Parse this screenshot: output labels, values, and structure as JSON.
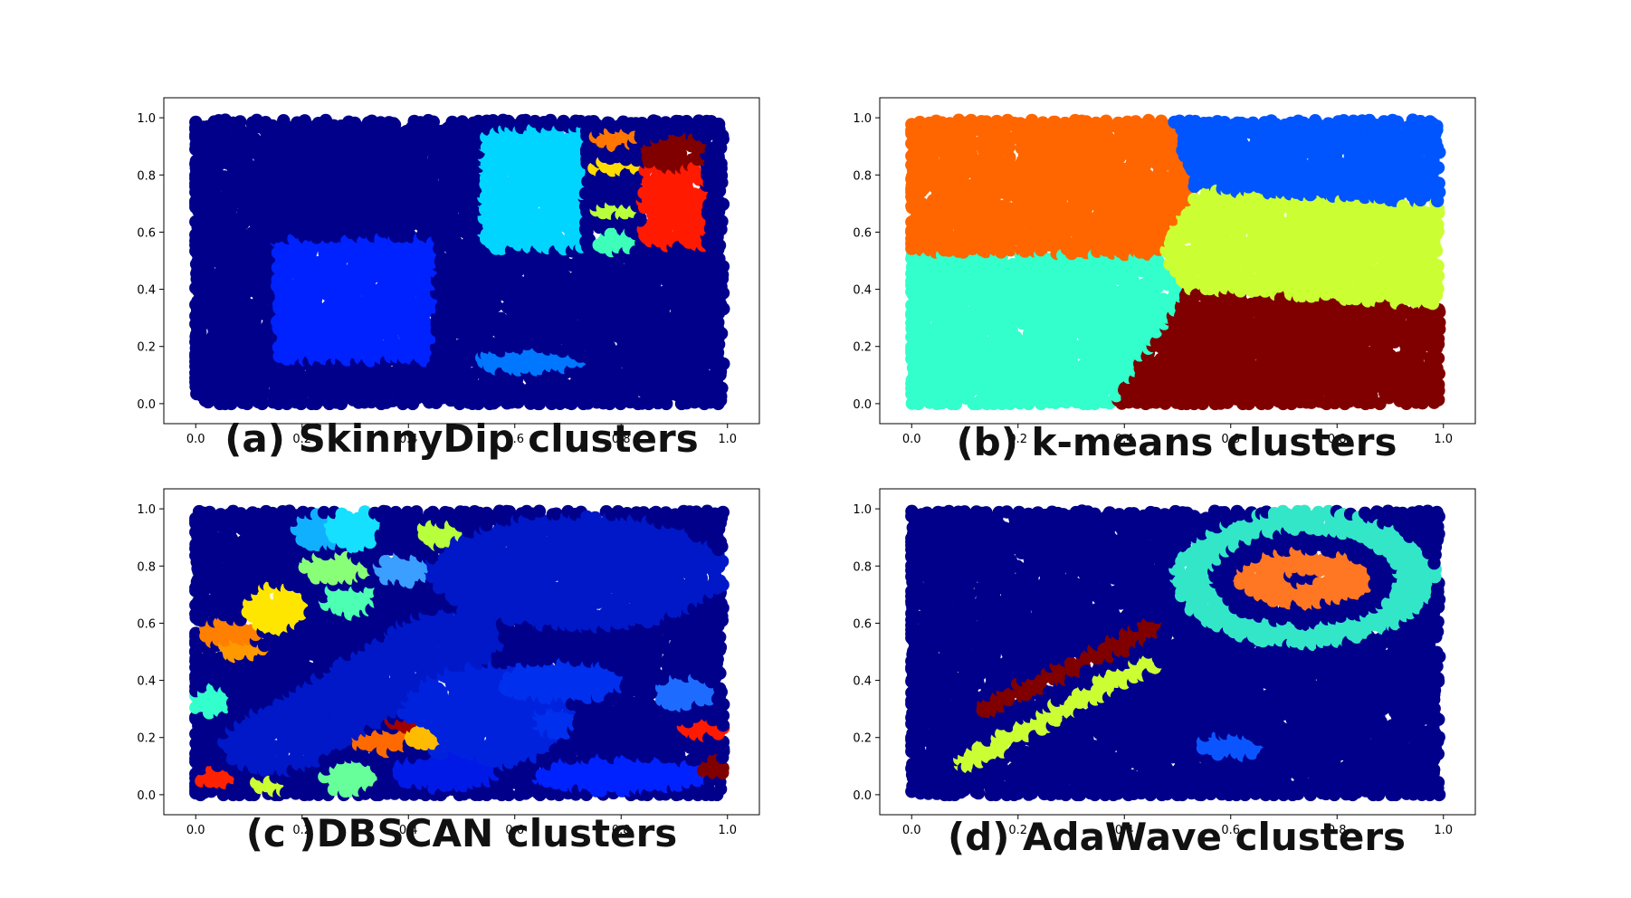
{
  "chart_data": [
    {
      "type": "scatter",
      "title": "(a) SkinnyDip clusters",
      "xlim": [
        -0.06,
        1.06
      ],
      "ylim": [
        -0.07,
        1.07
      ],
      "x_ticks": [
        "0.0",
        "0.2",
        "0.4",
        "0.6",
        "0.8",
        "1.0"
      ],
      "y_ticks": [
        "0.0",
        "0.2",
        "0.4",
        "0.6",
        "0.8",
        "1.0"
      ],
      "grid": false,
      "background_cluster": {
        "color": "#00008b",
        "region": [
          0,
          1,
          0,
          1
        ]
      },
      "clusters": [
        {
          "shape": "rect",
          "x": [
            0.15,
            0.45
          ],
          "y": [
            0.15,
            0.58
          ],
          "color": "#0022ff"
        },
        {
          "shape": "rect",
          "x": [
            0.54,
            0.73
          ],
          "y": [
            0.54,
            0.96
          ],
          "color": "#00d5ff"
        },
        {
          "shape": "rect",
          "x": [
            0.84,
            0.96
          ],
          "y": [
            0.55,
            0.83
          ],
          "color": "#ff1a00"
        },
        {
          "shape": "blob",
          "cx": 0.9,
          "cy": 0.88,
          "rx": 0.06,
          "ry": 0.06,
          "color": "#800000"
        },
        {
          "shape": "blob",
          "cx": 0.79,
          "cy": 0.93,
          "rx": 0.04,
          "ry": 0.03,
          "color": "#ff7700"
        },
        {
          "shape": "blob",
          "cx": 0.79,
          "cy": 0.83,
          "rx": 0.045,
          "ry": 0.02,
          "color": "#ffdd00"
        },
        {
          "shape": "blob",
          "cx": 0.79,
          "cy": 0.68,
          "rx": 0.045,
          "ry": 0.02,
          "color": "#b9ff3c"
        },
        {
          "shape": "blob",
          "cx": 0.79,
          "cy": 0.57,
          "rx": 0.04,
          "ry": 0.04,
          "color": "#3dffb9"
        },
        {
          "shape": "blob",
          "cx": 0.63,
          "cy": 0.15,
          "rx": 0.1,
          "ry": 0.04,
          "color": "#0077ff"
        }
      ]
    },
    {
      "type": "scatter",
      "title": "(b) k-means clusters",
      "xlim": [
        -0.06,
        1.06
      ],
      "ylim": [
        -0.07,
        1.07
      ],
      "x_ticks": [
        "0.0",
        "0.2",
        "0.4",
        "0.6",
        "0.8",
        "1.0"
      ],
      "y_ticks": [
        "0.0",
        "0.2",
        "0.4",
        "0.6",
        "0.8",
        "1.0"
      ],
      "grid": false,
      "partition": [
        {
          "polygon": [
            [
              0,
              0.53
            ],
            [
              0,
              1
            ],
            [
              0.49,
              1
            ],
            [
              0.53,
              0.75
            ],
            [
              0.47,
              0.52
            ]
          ],
          "color": "#ff6600"
        },
        {
          "polygon": [
            [
              0.49,
              1
            ],
            [
              1,
              1
            ],
            [
              1,
              0.7
            ],
            [
              0.53,
              0.75
            ]
          ],
          "color": "#0055ff"
        },
        {
          "polygon": [
            [
              0.53,
              0.75
            ],
            [
              1,
              0.7
            ],
            [
              1,
              0.34
            ],
            [
              0.52,
              0.4
            ],
            [
              0.47,
              0.52
            ]
          ],
          "color": "#ccff33"
        },
        {
          "polygon": [
            [
              0,
              0
            ],
            [
              0,
              0.53
            ],
            [
              0.47,
              0.52
            ],
            [
              0.52,
              0.4
            ],
            [
              0.38,
              0
            ]
          ],
          "color": "#33ffcc"
        },
        {
          "polygon": [
            [
              0.38,
              0
            ],
            [
              0.52,
              0.4
            ],
            [
              1,
              0.34
            ],
            [
              1,
              0
            ]
          ],
          "color": "#800000"
        }
      ]
    },
    {
      "type": "scatter",
      "title": "(c )DBSCAN clusters",
      "xlim": [
        -0.06,
        1.06
      ],
      "ylim": [
        -0.07,
        1.07
      ],
      "x_ticks": [
        "0.0",
        "0.2",
        "0.4",
        "0.6",
        "0.8",
        "1.0"
      ],
      "y_ticks": [
        "0.0",
        "0.2",
        "0.4",
        "0.6",
        "0.8",
        "1.0"
      ],
      "grid": false,
      "background_cluster": {
        "color": "#00008b",
        "region": [
          0,
          1,
          0,
          1
        ]
      },
      "clusters": [
        {
          "shape": "blob",
          "cx": 0.72,
          "cy": 0.78,
          "rx": 0.28,
          "ry": 0.2,
          "color": "#0018c8"
        },
        {
          "shape": "band",
          "x1": 0.15,
          "y1": 0.18,
          "x2": 0.48,
          "y2": 0.55,
          "w": 0.1,
          "color": "#0018c8"
        },
        {
          "shape": "blob",
          "cx": 0.55,
          "cy": 0.28,
          "rx": 0.16,
          "ry": 0.18,
          "color": "#0022dd"
        },
        {
          "shape": "blob",
          "cx": 0.8,
          "cy": 0.07,
          "rx": 0.16,
          "ry": 0.06,
          "color": "#0022ff"
        },
        {
          "shape": "blob",
          "cx": 0.47,
          "cy": 0.08,
          "rx": 0.1,
          "ry": 0.06,
          "color": "#0019e6"
        },
        {
          "shape": "blob",
          "cx": 0.69,
          "cy": 0.4,
          "rx": 0.12,
          "ry": 0.07,
          "color": "#0030ee"
        },
        {
          "shape": "blob",
          "cx": 0.92,
          "cy": 0.36,
          "rx": 0.06,
          "ry": 0.05,
          "color": "#1e6cff"
        },
        {
          "shape": "blob",
          "cx": 0.68,
          "cy": 0.26,
          "rx": 0.04,
          "ry": 0.05,
          "color": "#0030ee"
        },
        {
          "shape": "blob",
          "cx": 0.23,
          "cy": 0.92,
          "rx": 0.045,
          "ry": 0.06,
          "color": "#10b0ff"
        },
        {
          "shape": "blob",
          "cx": 0.3,
          "cy": 0.93,
          "rx": 0.05,
          "ry": 0.07,
          "color": "#16e0ff"
        },
        {
          "shape": "blob",
          "cx": 0.46,
          "cy": 0.91,
          "rx": 0.04,
          "ry": 0.04,
          "color": "#b8ff3c"
        },
        {
          "shape": "blob",
          "cx": 0.26,
          "cy": 0.79,
          "rx": 0.06,
          "ry": 0.05,
          "color": "#89ff78"
        },
        {
          "shape": "blob",
          "cx": 0.39,
          "cy": 0.79,
          "rx": 0.05,
          "ry": 0.05,
          "color": "#3a9fff"
        },
        {
          "shape": "blob",
          "cx": 0.15,
          "cy": 0.65,
          "rx": 0.06,
          "ry": 0.08,
          "color": "#ffe600"
        },
        {
          "shape": "blob",
          "cx": 0.29,
          "cy": 0.68,
          "rx": 0.05,
          "ry": 0.05,
          "color": "#4dffb3"
        },
        {
          "shape": "blob",
          "cx": 0.06,
          "cy": 0.57,
          "rx": 0.06,
          "ry": 0.04,
          "color": "#ff8000"
        },
        {
          "shape": "blob",
          "cx": 0.09,
          "cy": 0.51,
          "rx": 0.04,
          "ry": 0.03,
          "color": "#ff9900"
        },
        {
          "shape": "blob",
          "cx": 0.03,
          "cy": 0.33,
          "rx": 0.035,
          "ry": 0.05,
          "color": "#33ffcc"
        },
        {
          "shape": "blob",
          "cx": 0.35,
          "cy": 0.19,
          "rx": 0.05,
          "ry": 0.04,
          "color": "#ff6a00"
        },
        {
          "shape": "blob",
          "cx": 0.39,
          "cy": 0.25,
          "rx": 0.03,
          "ry": 0.02,
          "color": "#a00000"
        },
        {
          "shape": "blob",
          "cx": 0.43,
          "cy": 0.2,
          "rx": 0.035,
          "ry": 0.035,
          "color": "#ffbb00"
        },
        {
          "shape": "blob",
          "cx": 0.29,
          "cy": 0.06,
          "rx": 0.05,
          "ry": 0.06,
          "color": "#66ff99"
        },
        {
          "shape": "blob",
          "cx": 0.14,
          "cy": 0.03,
          "rx": 0.03,
          "ry": 0.025,
          "color": "#ccff33"
        },
        {
          "shape": "blob",
          "cx": 0.04,
          "cy": 0.06,
          "rx": 0.04,
          "ry": 0.03,
          "color": "#ff2200"
        },
        {
          "shape": "blob",
          "cx": 0.95,
          "cy": 0.23,
          "rx": 0.045,
          "ry": 0.03,
          "color": "#ff1a00"
        },
        {
          "shape": "blob",
          "cx": 0.98,
          "cy": 0.1,
          "rx": 0.03,
          "ry": 0.03,
          "color": "#800000"
        }
      ]
    },
    {
      "type": "scatter",
      "title": "(d) AdaWave clusters",
      "xlim": [
        -0.06,
        1.06
      ],
      "ylim": [
        -0.07,
        1.07
      ],
      "x_ticks": [
        "0.0",
        "0.2",
        "0.4",
        "0.6",
        "0.8",
        "1.0"
      ],
      "y_ticks": [
        "0.0",
        "0.2",
        "0.4",
        "0.6",
        "0.8",
        "1.0"
      ],
      "grid": false,
      "background_cluster": {
        "color": "#00008b",
        "region": [
          0,
          1,
          0,
          1
        ]
      },
      "clusters": [
        {
          "shape": "ring",
          "cx": 0.74,
          "cy": 0.76,
          "rx": 0.21,
          "ry": 0.2,
          "w": 0.035,
          "color": "#33e6c8"
        },
        {
          "shape": "ring",
          "cx": 0.74,
          "cy": 0.76,
          "rx": 0.08,
          "ry": 0.06,
          "w": 0.035,
          "color": "#ff7722"
        },
        {
          "shape": "band",
          "x1": 0.15,
          "y1": 0.31,
          "x2": 0.45,
          "y2": 0.58,
          "w": 0.025,
          "color": "#800000"
        },
        {
          "shape": "band",
          "x1": 0.11,
          "y1": 0.12,
          "x2": 0.44,
          "y2": 0.46,
          "w": 0.025,
          "color": "#ccff33"
        },
        {
          "shape": "blob",
          "cx": 0.6,
          "cy": 0.17,
          "rx": 0.06,
          "ry": 0.04,
          "color": "#0a55ff"
        }
      ]
    }
  ]
}
